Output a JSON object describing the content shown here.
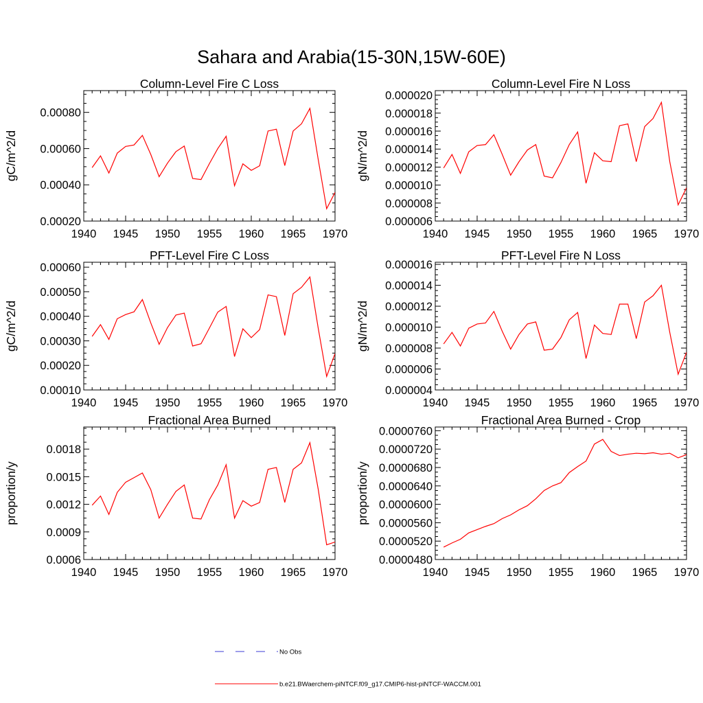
{
  "figure": {
    "title": "Sahara and Arabia(15-30N,15W-60E)",
    "legend": [
      {
        "label": "No Obs",
        "style": "dashed",
        "color": "#3b3bd6"
      },
      {
        "label": "b.e21.BWaerchem-piNTCF.f09_g17.CMIP6-hist-piNTCF-WACCM.001",
        "style": "solid",
        "color": "#ff0000"
      }
    ]
  },
  "chart_data": [
    {
      "type": "line",
      "title": "Column-Level Fire C Loss",
      "xlabel": "",
      "ylabel": "gC/m^2/d",
      "xlim": [
        1940,
        1970
      ],
      "ylim": [
        0.0002,
        0.00092
      ],
      "xticks": [
        1940,
        1945,
        1950,
        1955,
        1960,
        1965,
        1970
      ],
      "yticks": [
        "0.00020",
        "0.00040",
        "0.00060",
        "0.00080"
      ],
      "ytick_values": [
        0.0002,
        0.0004,
        0.0006,
        0.0008
      ],
      "series": [
        {
          "color": "#ff0000",
          "x": [
            1941,
            1942,
            1943,
            1944,
            1945,
            1946,
            1947,
            1948,
            1949,
            1950,
            1951,
            1952,
            1953,
            1954,
            1955,
            1956,
            1957,
            1958,
            1959,
            1960,
            1961,
            1962,
            1963,
            1964,
            1965,
            1966,
            1967,
            1968,
            1969,
            1970
          ],
          "values": [
            0.000495,
            0.00056,
            0.000465,
            0.000575,
            0.000612,
            0.00062,
            0.000673,
            0.000568,
            0.000445,
            0.00052,
            0.000583,
            0.000614,
            0.000435,
            0.000429,
            0.000517,
            0.0006,
            0.000668,
            0.000395,
            0.000516,
            0.00048,
            0.000505,
            0.000697,
            0.000707,
            0.000506,
            0.000697,
            0.000737,
            0.000822,
            0.000538,
            0.000268,
            0.000358
          ]
        }
      ]
    },
    {
      "type": "line",
      "title": "Column-Level Fire N Loss",
      "xlabel": "",
      "ylabel": "gN/m^2/d",
      "xlim": [
        1940,
        1970
      ],
      "ylim": [
        6e-06,
        2.05e-05
      ],
      "xticks": [
        1940,
        1945,
        1950,
        1955,
        1960,
        1965,
        1970
      ],
      "yticks": [
        "0.000006",
        "0.000008",
        "0.000010",
        "0.000012",
        "0.000014",
        "0.000016",
        "0.000018",
        "0.000020"
      ],
      "ytick_values": [
        6e-06,
        8e-06,
        1e-05,
        1.2e-05,
        1.4e-05,
        1.6e-05,
        1.8e-05,
        2e-05
      ],
      "series": [
        {
          "color": "#ff0000",
          "x": [
            1941,
            1942,
            1943,
            1944,
            1945,
            1946,
            1947,
            1948,
            1949,
            1950,
            1951,
            1952,
            1953,
            1954,
            1955,
            1956,
            1957,
            1958,
            1959,
            1960,
            1961,
            1962,
            1963,
            1964,
            1965,
            1966,
            1967,
            1968,
            1969,
            1970
          ],
          "values": [
            1.19e-05,
            1.34e-05,
            1.13e-05,
            1.37e-05,
            1.44e-05,
            1.45e-05,
            1.56e-05,
            1.34e-05,
            1.11e-05,
            1.26e-05,
            1.39e-05,
            1.45e-05,
            1.1e-05,
            1.08e-05,
            1.25e-05,
            1.45e-05,
            1.59e-05,
            1.02e-05,
            1.36e-05,
            1.27e-05,
            1.26e-05,
            1.66e-05,
            1.68e-05,
            1.26e-05,
            1.65e-05,
            1.74e-05,
            1.92e-05,
            1.26e-05,
            7.8e-06,
            9.7e-06
          ]
        }
      ]
    },
    {
      "type": "line",
      "title": "PFT-Level Fire C Loss",
      "xlabel": "",
      "ylabel": "gC/m^2/d",
      "xlim": [
        1940,
        1970
      ],
      "ylim": [
        0.0001,
        0.00062
      ],
      "xticks": [
        1940,
        1945,
        1950,
        1955,
        1960,
        1965,
        1970
      ],
      "yticks": [
        "0.00010",
        "0.00020",
        "0.00030",
        "0.00040",
        "0.00050",
        "0.00060"
      ],
      "ytick_values": [
        0.0001,
        0.0002,
        0.0003,
        0.0004,
        0.0005,
        0.0006
      ],
      "series": [
        {
          "color": "#ff0000",
          "x": [
            1941,
            1942,
            1943,
            1944,
            1945,
            1946,
            1947,
            1948,
            1949,
            1950,
            1951,
            1952,
            1953,
            1954,
            1955,
            1956,
            1957,
            1958,
            1959,
            1960,
            1961,
            1962,
            1963,
            1964,
            1965,
            1966,
            1967,
            1968,
            1969,
            1970
          ],
          "values": [
            0.000318,
            0.000366,
            0.000306,
            0.00039,
            0.000407,
            0.000418,
            0.000468,
            0.000373,
            0.000286,
            0.000354,
            0.000405,
            0.000413,
            0.000279,
            0.000288,
            0.000352,
            0.000417,
            0.00044,
            0.000236,
            0.000349,
            0.000313,
            0.000346,
            0.000487,
            0.00048,
            0.000322,
            0.000492,
            0.000518,
            0.00056,
            0.00035,
            0.000155,
            0.000248
          ]
        }
      ]
    },
    {
      "type": "line",
      "title": "PFT-Level Fire N Loss",
      "xlabel": "",
      "ylabel": "gN/m^2/d",
      "xlim": [
        1940,
        1970
      ],
      "ylim": [
        4e-06,
        1.62e-05
      ],
      "xticks": [
        1940,
        1945,
        1950,
        1955,
        1960,
        1965,
        1970
      ],
      "yticks": [
        "0.000004",
        "0.000006",
        "0.000008",
        "0.000010",
        "0.000012",
        "0.000014",
        "0.000016"
      ],
      "ytick_values": [
        4e-06,
        6e-06,
        8e-06,
        1e-05,
        1.2e-05,
        1.4e-05,
        1.6e-05
      ],
      "series": [
        {
          "color": "#ff0000",
          "x": [
            1941,
            1942,
            1943,
            1944,
            1945,
            1946,
            1947,
            1948,
            1949,
            1950,
            1951,
            1952,
            1953,
            1954,
            1955,
            1956,
            1957,
            1958,
            1959,
            1960,
            1961,
            1962,
            1963,
            1964,
            1965,
            1966,
            1967,
            1968,
            1969,
            1970
          ],
          "values": [
            8.4e-06,
            9.5e-06,
            8.2e-06,
            9.9e-06,
            1.03e-05,
            1.04e-05,
            1.15e-05,
            9.6e-06,
            7.9e-06,
            9.3e-06,
            1.03e-05,
            1.05e-05,
            7.8e-06,
            7.9e-06,
            9e-06,
            1.07e-05,
            1.14e-05,
            7e-06,
            1.02e-05,
            9.4e-06,
            9.3e-06,
            1.22e-05,
            1.22e-05,
            8.9e-06,
            1.24e-05,
            1.3e-05,
            1.4e-05,
            9.5e-06,
            5.5e-06,
            7.6e-06
          ]
        }
      ]
    },
    {
      "type": "line",
      "title": "Fractional Area Burned",
      "xlabel": "",
      "ylabel": "proportion/y",
      "xlim": [
        1940,
        1970
      ],
      "ylim": [
        0.0006,
        0.00204
      ],
      "xticks": [
        1940,
        1945,
        1950,
        1955,
        1960,
        1965,
        1970
      ],
      "yticks": [
        "0.0006",
        "0.0009",
        "0.0012",
        "0.0015",
        "0.0018"
      ],
      "ytick_values": [
        0.0006,
        0.0009,
        0.0012,
        0.0015,
        0.0018
      ],
      "series": [
        {
          "color": "#ff0000",
          "x": [
            1941,
            1942,
            1943,
            1944,
            1945,
            1946,
            1947,
            1948,
            1949,
            1950,
            1951,
            1952,
            1953,
            1954,
            1955,
            1956,
            1957,
            1958,
            1959,
            1960,
            1961,
            1962,
            1963,
            1964,
            1965,
            1966,
            1967,
            1968,
            1969,
            1970
          ],
          "values": [
            0.00119,
            0.00129,
            0.00109,
            0.00133,
            0.00144,
            0.00149,
            0.00154,
            0.00136,
            0.00105,
            0.0012,
            0.00134,
            0.00141,
            0.00105,
            0.00104,
            0.00125,
            0.00141,
            0.00163,
            0.00105,
            0.00124,
            0.00118,
            0.00122,
            0.00158,
            0.0016,
            0.00122,
            0.00158,
            0.00165,
            0.00187,
            0.00136,
            0.00076,
            0.00079
          ]
        }
      ]
    },
    {
      "type": "line",
      "title": "Fractional Area Burned - Crop",
      "xlabel": "",
      "ylabel": "proportion/y",
      "xlim": [
        1940,
        1970
      ],
      "ylim": [
        4.8e-05,
        7.68e-05
      ],
      "xticks": [
        1940,
        1945,
        1950,
        1955,
        1960,
        1965,
        1970
      ],
      "yticks": [
        "0.0000480",
        "0.0000520",
        "0.0000560",
        "0.0000600",
        "0.0000640",
        "0.0000680",
        "0.0000720",
        "0.0000760"
      ],
      "ytick_values": [
        4.8e-05,
        5.2e-05,
        5.6e-05,
        6e-05,
        6.4e-05,
        6.8e-05,
        7.2e-05,
        7.6e-05
      ],
      "series": [
        {
          "color": "#ff0000",
          "x": [
            1941,
            1942,
            1943,
            1944,
            1945,
            1946,
            1947,
            1948,
            1949,
            1950,
            1951,
            1952,
            1953,
            1954,
            1955,
            1956,
            1957,
            1958,
            1959,
            1960,
            1961,
            1962,
            1963,
            1964,
            1965,
            1966,
            1967,
            1968,
            1969,
            1970
          ],
          "values": [
            5.07e-05,
            5.16e-05,
            5.24e-05,
            5.38e-05,
            5.45e-05,
            5.52e-05,
            5.58e-05,
            5.69e-05,
            5.77e-05,
            5.88e-05,
            5.97e-05,
            6.12e-05,
            6.3e-05,
            6.4e-05,
            6.47e-05,
            6.69e-05,
            6.82e-05,
            6.94e-05,
            7.31e-05,
            7.41e-05,
            7.15e-05,
            7.06e-05,
            7.09e-05,
            7.11e-05,
            7.1e-05,
            7.12e-05,
            7.09e-05,
            7.11e-05,
            7.01e-05,
            7.08e-05
          ]
        }
      ]
    }
  ]
}
